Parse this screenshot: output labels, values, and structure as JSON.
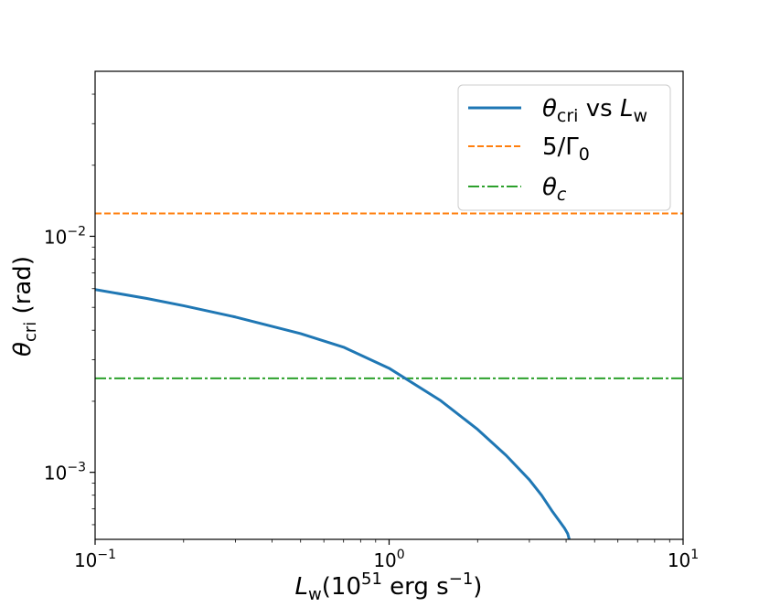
{
  "chart_data": {
    "type": "line",
    "x_scale": "log",
    "y_scale": "log",
    "xlim": [
      0.1,
      10
    ],
    "ylim": [
      0.00052,
      0.05
    ],
    "x_ticks": [
      {
        "value": 0.1,
        "base": "10",
        "exp": "−1"
      },
      {
        "value": 1,
        "base": "10",
        "exp": "0"
      },
      {
        "value": 10,
        "base": "10",
        "exp": "1"
      }
    ],
    "y_ticks": [
      {
        "value": 0.001,
        "base": "10",
        "exp": "−3"
      },
      {
        "value": 0.01,
        "base": "10",
        "exp": "−2"
      }
    ],
    "xlabel": {
      "main": "L",
      "sub": "w",
      "rest": "(10",
      "sup": "51",
      "tail": " erg s",
      "sup2": "−1",
      "end": ")"
    },
    "ylabel": {
      "main": "θ",
      "sub": "cri",
      "rest": " (rad)"
    },
    "legend_position": "upper-right",
    "series": [
      {
        "name": "θcri vs Lw",
        "legend": {
          "main": "θ",
          "sub": "cri",
          "mid": " vs ",
          "var": "L",
          "varsub": "w"
        },
        "color": "#1f77b4",
        "style": "solid",
        "x": [
          0.1,
          0.15,
          0.2,
          0.3,
          0.5,
          0.7,
          1.0,
          1.5,
          2.0,
          2.5,
          3.0,
          3.3,
          3.6,
          3.8,
          3.95,
          4.05,
          4.1
        ],
        "y": [
          0.00595,
          0.00545,
          0.00508,
          0.00455,
          0.00387,
          0.00339,
          0.00276,
          0.00201,
          0.00152,
          0.00118,
          0.00093,
          0.0008,
          0.00068,
          0.00062,
          0.00058,
          0.00055,
          0.00052
        ]
      },
      {
        "name": "5/Γ0",
        "legend": {
          "main": "5/Γ",
          "sub": "0"
        },
        "color": "#ff7f0e",
        "style": "dashed",
        "x": [
          0.1,
          10
        ],
        "y": [
          0.0125,
          0.0125
        ]
      },
      {
        "name": "θc",
        "legend": {
          "main": "θ",
          "subItalic": "c"
        },
        "color": "#2ca02c",
        "style": "dashdot",
        "x": [
          0.1,
          10
        ],
        "y": [
          0.0025,
          0.0025
        ]
      }
    ]
  }
}
